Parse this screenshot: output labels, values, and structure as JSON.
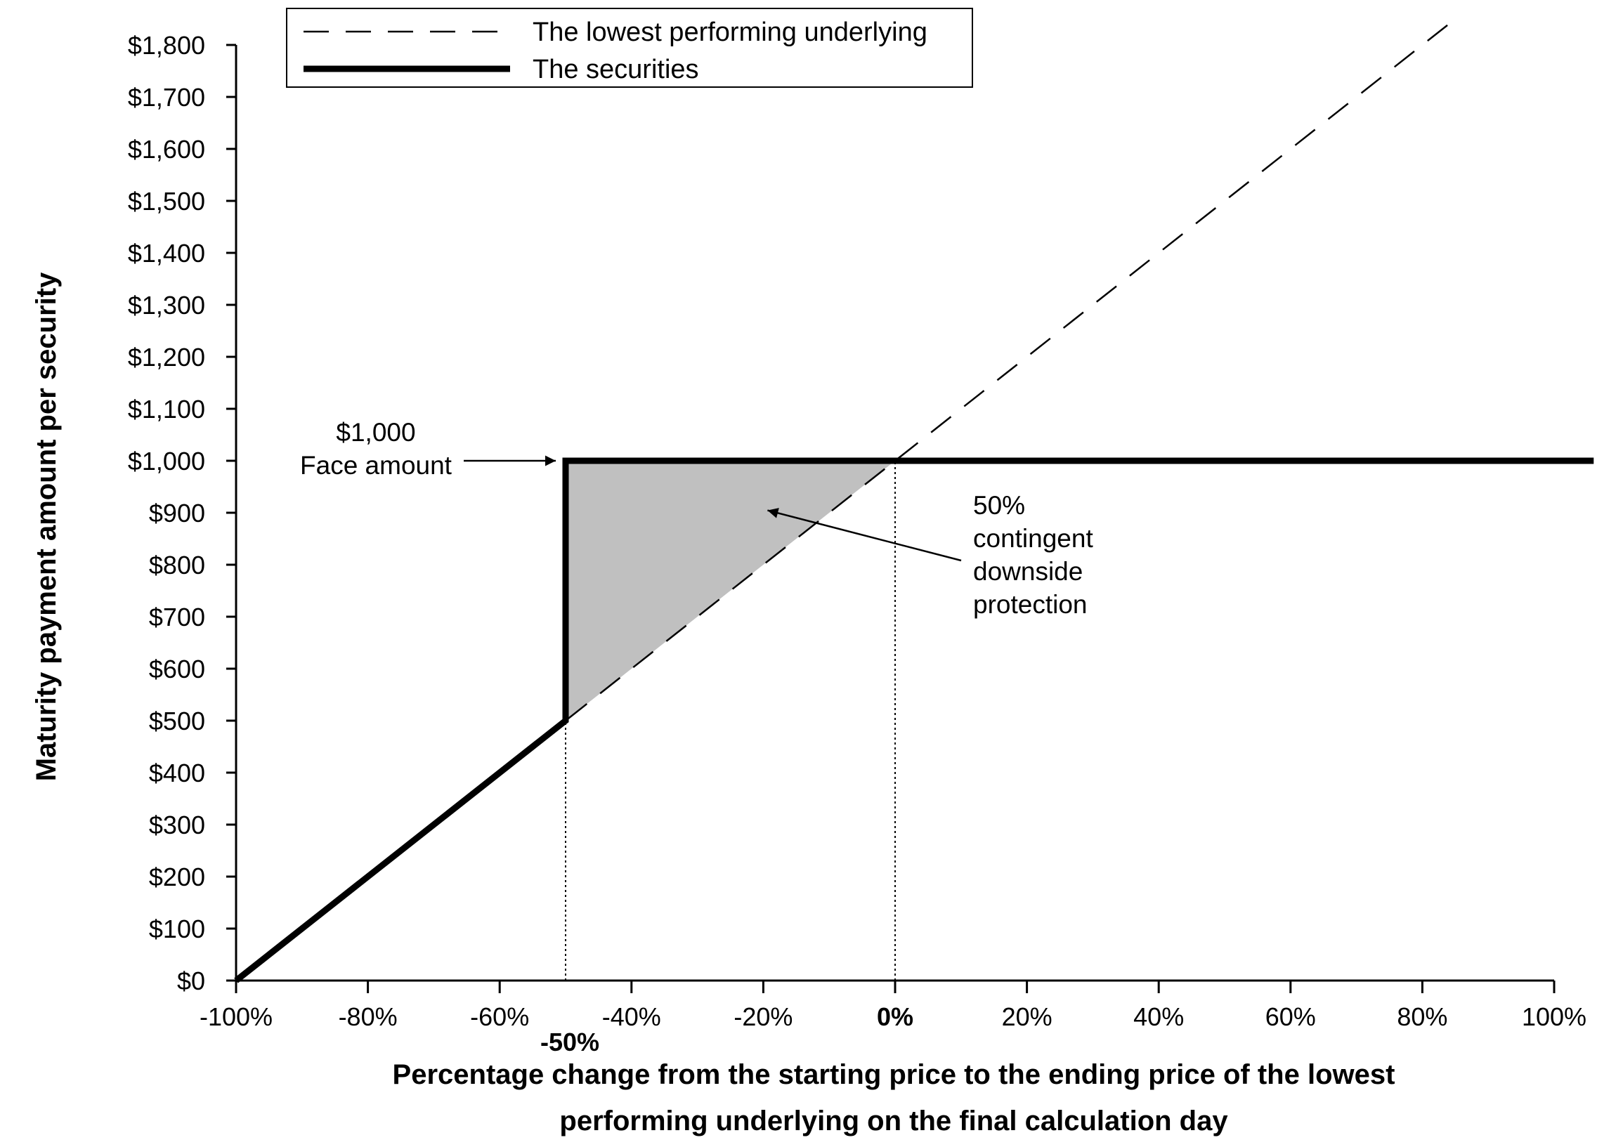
{
  "chart_data": {
    "type": "line",
    "xlabel": [
      "Percentage change from the starting price to the ending price of the lowest",
      "performing underlying on the final calculation day"
    ],
    "ylabel": "Maturity payment amount per security",
    "xlim": [
      -100,
      100
    ],
    "ylim": [
      0,
      1800
    ],
    "x_ticks": [
      -100,
      -80,
      -60,
      -40,
      -20,
      0,
      20,
      40,
      60,
      80,
      100
    ],
    "x_tick_labels": [
      "-100%",
      "-80%",
      "-60%",
      "-40%",
      "-20%",
      "0%",
      "20%",
      "40%",
      "60%",
      "80%",
      "100%"
    ],
    "y_ticks": [
      0,
      100,
      200,
      300,
      400,
      500,
      600,
      700,
      800,
      900,
      1000,
      1100,
      1200,
      1300,
      1400,
      1500,
      1600,
      1700,
      1800
    ],
    "y_tick_labels": [
      "$0",
      "$100",
      "$200",
      "$300",
      "$400",
      "$500",
      "$600",
      "$700",
      "$800",
      "$900",
      "$1,000",
      "$1,100",
      "$1,200",
      "$1,300",
      "$1,400",
      "$1,500",
      "$1,600",
      "$1,700",
      "$1,800"
    ],
    "extra_x_label": {
      "x": -50,
      "text": "-50%"
    },
    "series": [
      {
        "name": "The lowest performing underlying",
        "style": "dashed",
        "color": "#000000",
        "x": [
          -100,
          85
        ],
        "y": [
          0,
          1850
        ]
      },
      {
        "name": "The securities",
        "style": "solid-thick",
        "color": "#000000",
        "x": [
          -100,
          -50,
          -50,
          0,
          106
        ],
        "y": [
          0,
          500,
          1000,
          1000,
          1000
        ]
      }
    ],
    "shaded_region": {
      "color": "#c0c0c0",
      "x": [
        -50,
        -50,
        0
      ],
      "y": [
        500,
        1000,
        1000
      ]
    },
    "reference_lines": [
      {
        "x": -50,
        "y_from": 0,
        "y_to": 500,
        "style": "dotted"
      },
      {
        "x": 0,
        "y_from": 0,
        "y_to": 1000,
        "style": "dotted"
      }
    ],
    "annotations": [
      {
        "lines": [
          "$1,000",
          "Face amount"
        ],
        "arrow_to": {
          "x": -50,
          "y": 1000
        }
      },
      {
        "lines": [
          "50%",
          "contingent",
          "downside",
          "protection"
        ],
        "arrow_to": {
          "x": -20,
          "y": 910
        }
      }
    ],
    "legend": {
      "position": "top-left"
    }
  }
}
